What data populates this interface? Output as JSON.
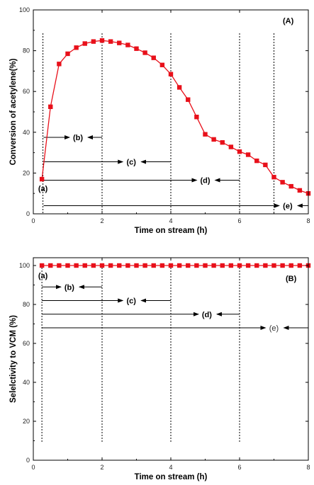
{
  "colors": {
    "series": "#e8101a",
    "axis": "#000000",
    "annotation": "#000000"
  },
  "chart_data": [
    {
      "type": "line",
      "panel_label": "(A)",
      "xlabel": "Time on stream (h)",
      "ylabel": "Conversion of acetylene(%)",
      "xlim": [
        0,
        8
      ],
      "ylim": [
        0,
        100
      ],
      "xticks": [
        "0",
        "2",
        "4",
        "6",
        "8"
      ],
      "yticks": [
        "0",
        "20",
        "40",
        "60",
        "80",
        "100"
      ],
      "grid": false,
      "series": [
        {
          "x": [
            0.25,
            0.5,
            0.75,
            1.0,
            1.25,
            1.5,
            1.75,
            2.0,
            2.25,
            2.5,
            2.75,
            3.0,
            3.25,
            3.5,
            3.75,
            4.0,
            4.25,
            4.5,
            4.75,
            5.0,
            5.25,
            5.5,
            5.75,
            6.0,
            6.25,
            6.5,
            6.75,
            7.0,
            7.25,
            7.5,
            7.75,
            8.0
          ],
          "values": [
            17,
            52.5,
            73.5,
            78.5,
            81.5,
            83.5,
            84.5,
            85,
            84.5,
            83.8,
            82.8,
            81,
            79,
            76.5,
            73,
            68.5,
            62,
            56,
            47.5,
            39,
            36.5,
            35,
            32.8,
            30.5,
            29,
            26,
            24,
            18,
            15.5,
            13.5,
            11.5,
            10
          ]
        }
      ],
      "annotations": [
        {
          "label": "(a)",
          "x": 0.28,
          "y": 12.5,
          "arrow_from": null,
          "arrow_to": null,
          "dashed_line_x": 0.28
        },
        {
          "label": "(b)",
          "x": 1.3,
          "y": 37.5,
          "arrow_from": 0.3,
          "arrow_to": 2.0,
          "dashed_line_x": 2.0
        },
        {
          "label": "(c)",
          "x": 2.85,
          "y": 25.5,
          "arrow_from": 0.3,
          "arrow_to": 4.0,
          "dashed_line_x": 4.0
        },
        {
          "label": "(d)",
          "x": 5.0,
          "y": 16.5,
          "arrow_from": 0.3,
          "arrow_to": 6.0,
          "dashed_line_x": 6.0
        },
        {
          "label": "(e)",
          "x": 7.4,
          "y": 4,
          "arrow_from": 0.3,
          "arrow_to": 8.0,
          "dashed_line_x": 7.0
        }
      ]
    },
    {
      "type": "line",
      "panel_label": "(B)",
      "xlabel": "Time on stream (h)",
      "ylabel": "Selelctivity to VCM (%)",
      "xlim": [
        0,
        8
      ],
      "ylim": [
        0,
        104
      ],
      "xticks": [
        "0",
        "2",
        "4",
        "6",
        "8"
      ],
      "yticks": [
        "0",
        "20",
        "40",
        "60",
        "80",
        "100"
      ],
      "grid": false,
      "series": [
        {
          "x": [
            0.25,
            0.5,
            0.75,
            1.0,
            1.25,
            1.5,
            1.75,
            2.0,
            2.25,
            2.5,
            2.75,
            3.0,
            3.25,
            3.5,
            3.75,
            4.0,
            4.25,
            4.5,
            4.75,
            5.0,
            5.25,
            5.5,
            5.75,
            6.0,
            6.25,
            6.5,
            6.75,
            7.0,
            7.25,
            7.5,
            7.75,
            8.0
          ],
          "values": [
            100,
            100,
            100,
            100,
            100,
            100,
            100,
            100,
            100,
            100,
            100,
            100,
            100,
            100,
            100,
            100,
            100,
            100,
            100,
            100,
            100,
            100,
            100,
            100,
            100,
            100,
            100,
            100,
            100,
            100,
            100,
            100
          ]
        }
      ],
      "annotations": [
        {
          "label": "(a)",
          "x": 0.28,
          "y": 95,
          "arrow_from": null,
          "arrow_to": null,
          "dashed_line_x": 0.25
        },
        {
          "label": "(b)",
          "x": 1.05,
          "y": 89,
          "arrow_from": 0.25,
          "arrow_to": 2.0,
          "dashed_line_x": 2.0
        },
        {
          "label": "(c)",
          "x": 2.85,
          "y": 82,
          "arrow_from": 0.25,
          "arrow_to": 4.0,
          "dashed_line_x": 4.0
        },
        {
          "label": "(d)",
          "x": 5.05,
          "y": 75,
          "arrow_from": 0.25,
          "arrow_to": 6.0,
          "dashed_line_x": 6.0
        },
        {
          "label": "(e)",
          "x": 7.0,
          "y": 68,
          "arrow_from": 0.25,
          "arrow_to": 8.0,
          "dashed_line_x": null
        }
      ]
    }
  ]
}
